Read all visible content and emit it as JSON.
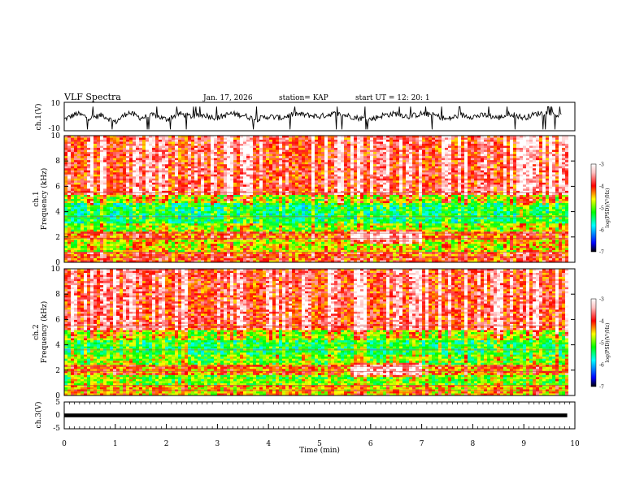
{
  "header": {
    "title": "VLF Spectra",
    "date": "Jan. 17, 2026",
    "station": "station= KAP",
    "start_ut": "start  UT =   12: 20: 1"
  },
  "chart_data": [
    {
      "type": "line",
      "panel": "ch1-waveform",
      "ylabel": "ch.1(V)",
      "ylim": [
        -10,
        10
      ],
      "yticks": [
        "10",
        "-10"
      ],
      "x": [
        0,
        0.25,
        0.5,
        0.75,
        1,
        1.25,
        1.5,
        1.75,
        2,
        2.25,
        2.5,
        2.75,
        3,
        3.25,
        3.5,
        3.75,
        4,
        4.25,
        4.5,
        4.75,
        5,
        5.25,
        5.5,
        5.75,
        6,
        6.25,
        6.5,
        6.75,
        7,
        7.25,
        7.5,
        7.75,
        8,
        8.25,
        8.5,
        8.75,
        9,
        9.25,
        9.5,
        9.75
      ],
      "values": [
        -2,
        2,
        -1,
        1,
        -4,
        3,
        -1,
        1,
        -2,
        2,
        0,
        1,
        -1,
        2,
        1,
        -2,
        0,
        -1,
        2,
        1,
        0,
        2,
        1,
        -1,
        -2,
        1,
        2,
        0,
        2,
        1,
        -2,
        1,
        0,
        1,
        -1,
        2,
        -1,
        2,
        3,
        0
      ],
      "grid": false
    },
    {
      "type": "heatmap",
      "panel": "ch1-spectrogram",
      "ylabel": "ch.1\nFrequency  (kHz)",
      "ylim": [
        0,
        10
      ],
      "yticks": [
        "0",
        "2",
        "4",
        "6",
        "8",
        "10"
      ],
      "xlim": [
        0,
        10
      ],
      "colorbar": {
        "label": "log(PSD)(V²/Hz)",
        "ticks": [
          "-3",
          "-4",
          "-5",
          "-6",
          "-7"
        ],
        "range": [
          -7,
          -3
        ]
      },
      "bands_khz": [
        {
          "from": 0,
          "to": 0.8,
          "level": -4.2
        },
        {
          "from": 0.8,
          "to": 1.7,
          "level": -4.8
        },
        {
          "from": 1.7,
          "to": 2.4,
          "level": -4.3
        },
        {
          "from": 2.4,
          "to": 3.0,
          "level": -5.0
        },
        {
          "from": 3.0,
          "to": 4.6,
          "level": -5.5
        },
        {
          "from": 4.6,
          "to": 5.4,
          "level": -4.9
        },
        {
          "from": 5.4,
          "to": 10,
          "level": -4.0
        }
      ]
    },
    {
      "type": "heatmap",
      "panel": "ch2-spectrogram",
      "ylabel": "ch.2\nFrequency  (kHz)",
      "ylim": [
        0,
        10
      ],
      "yticks": [
        "0",
        "2",
        "4",
        "6",
        "8",
        "10"
      ],
      "xlim": [
        0,
        10
      ],
      "colorbar": {
        "label": "log(PSD)(V²/Hz)",
        "ticks": [
          "-3",
          "-4",
          "-5",
          "-6",
          "-7"
        ],
        "range": [
          -7,
          -3
        ]
      },
      "bands_khz": [
        {
          "from": 0,
          "to": 0.8,
          "level": -4.6
        },
        {
          "from": 0.8,
          "to": 1.6,
          "level": -5.1
        },
        {
          "from": 1.6,
          "to": 2.4,
          "level": -4.4
        },
        {
          "from": 2.4,
          "to": 3.3,
          "level": -5.1
        },
        {
          "from": 3.3,
          "to": 4.4,
          "level": -5.4
        },
        {
          "from": 4.4,
          "to": 5.2,
          "level": -4.9
        },
        {
          "from": 5.2,
          "to": 10,
          "level": -4.0
        }
      ]
    },
    {
      "type": "line",
      "panel": "ch3-trace",
      "ylabel": "ch.3(V)",
      "ylim": [
        -5,
        5
      ],
      "yticks": [
        "5",
        "0",
        "-5"
      ],
      "x": [
        0,
        9.85
      ],
      "values": [
        0,
        0
      ],
      "xlabel": "Time  (min)",
      "xticks": [
        "0",
        "1",
        "2",
        "3",
        "4",
        "5",
        "6",
        "7",
        "8",
        "9",
        "10"
      ],
      "xlim": [
        0,
        10
      ]
    }
  ],
  "colors": {
    "background": "#ffffff",
    "axes": "#000000",
    "trace": "#000000",
    "colormap": [
      "#000000",
      "#0000ff",
      "#00ffff",
      "#00ff00",
      "#ffff00",
      "#ff0000",
      "#ffc0c0",
      "#ffffff"
    ]
  }
}
